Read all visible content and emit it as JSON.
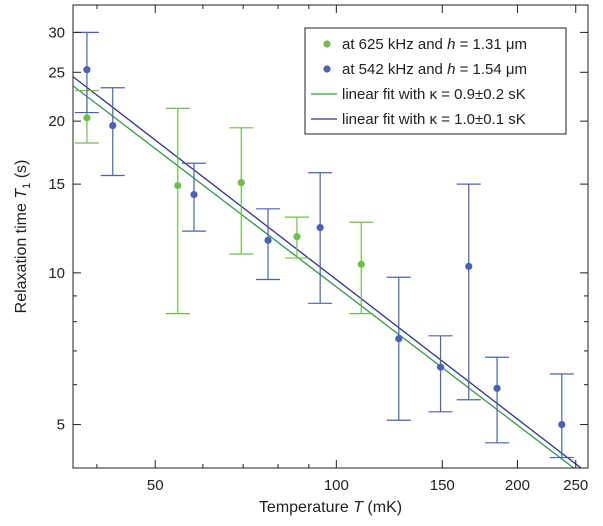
{
  "chart_data": {
    "type": "scatter",
    "xlabel": "Temperature",
    "xlabel_symbol": "T",
    "xlabel_unit": "(mK)",
    "ylabel": "Relaxation time",
    "ylabel_symbol": "T",
    "ylabel_subscript": "1",
    "ylabel_unit": "(s)",
    "x_scale": "log",
    "y_scale": "log",
    "xlim": [
      36.5,
      262
    ],
    "ylim": [
      4.1,
      34
    ],
    "x_ticks": [
      50,
      100,
      150,
      200,
      250
    ],
    "x_tick_labels": [
      "50",
      "100",
      "150",
      "200",
      "250"
    ],
    "x_minor_ticks": [
      40,
      60,
      70,
      80,
      90
    ],
    "y_ticks": [
      5,
      10,
      15,
      20,
      25,
      30
    ],
    "y_tick_labels": [
      "5",
      "10",
      "15",
      "20",
      "25",
      "30"
    ],
    "y_minor_ticks": [
      6,
      7,
      8,
      9
    ],
    "grid": false,
    "legend_position": "top-right",
    "series": [
      {
        "name_prefix": "at 625 kHz and ",
        "name_symbol": "h",
        "name_suffix": " = 1.31 μm",
        "kind": "points",
        "color": "#6cc04a",
        "points": [
          {
            "x": 38.5,
            "y": 20.3,
            "y_low": 18.1,
            "y_high": 23.0
          },
          {
            "x": 54.5,
            "y": 14.9,
            "y_low": 8.3,
            "y_high": 21.2
          },
          {
            "x": 69.5,
            "y": 15.1,
            "y_low": 10.9,
            "y_high": 19.4
          },
          {
            "x": 86.0,
            "y": 11.8,
            "y_low": 10.7,
            "y_high": 12.9
          },
          {
            "x": 110.0,
            "y": 10.4,
            "y_low": 8.3,
            "y_high": 12.6
          }
        ]
      },
      {
        "name_prefix": "at 542 kHz and ",
        "name_symbol": "h",
        "name_suffix": " = 1.54 μm",
        "kind": "points",
        "color": "#4a62b4",
        "points": [
          {
            "x": 38.5,
            "y": 25.3,
            "y_low": 20.8,
            "y_high": 30.0
          },
          {
            "x": 42.5,
            "y": 19.6,
            "y_low": 15.6,
            "y_high": 23.3
          },
          {
            "x": 58.0,
            "y": 14.3,
            "y_low": 12.1,
            "y_high": 16.5
          },
          {
            "x": 77.0,
            "y": 11.6,
            "y_low": 9.7,
            "y_high": 13.4
          },
          {
            "x": 94.0,
            "y": 12.3,
            "y_low": 8.7,
            "y_high": 15.8
          },
          {
            "x": 127.0,
            "y": 7.4,
            "y_low": 5.1,
            "y_high": 9.8
          },
          {
            "x": 149.0,
            "y": 6.5,
            "y_low": 5.3,
            "y_high": 7.5
          },
          {
            "x": 166.0,
            "y": 10.3,
            "y_low": 5.6,
            "y_high": 15.0
          },
          {
            "x": 185.0,
            "y": 5.9,
            "y_low": 4.6,
            "y_high": 6.8
          },
          {
            "x": 237.0,
            "y": 5.0,
            "y_low": 4.3,
            "y_high": 6.3
          }
        ]
      },
      {
        "name": "linear fit with κ = 0.9±0.2 sK",
        "kind": "line",
        "color": "#2e9a48",
        "x": [
          36.5,
          262
        ],
        "y": [
          23.5,
          3.9
        ]
      },
      {
        "name": "linear fit with κ = 1.0±0.1 sK",
        "kind": "line",
        "color": "#2a2f9a",
        "x": [
          36.5,
          262
        ],
        "y": [
          24.5,
          4.0
        ]
      }
    ]
  }
}
